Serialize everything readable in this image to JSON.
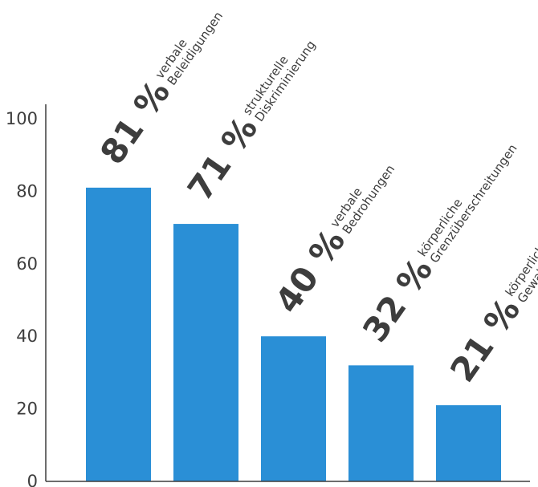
{
  "chart_data": {
    "type": "bar",
    "title": "",
    "xlabel": "",
    "ylabel": "",
    "ylim": [
      0,
      100
    ],
    "yticks": [
      0,
      20,
      40,
      60,
      80,
      100
    ],
    "grid": false,
    "legend": "none",
    "bar_color": "#2a8fd6",
    "text_color": "#3d3d3d",
    "categories": [
      [
        "verbale",
        "Beleidigungen"
      ],
      [
        "strukturelle",
        "Diskriminierung"
      ],
      [
        "verbale",
        "Bedrohungen"
      ],
      [
        "körperliche",
        "Grenzüberschreitungen"
      ],
      [
        "körperliche",
        "Gewalt"
      ]
    ],
    "values": [
      81,
      71,
      40,
      32,
      21
    ],
    "data_labels": [
      "81 %",
      "71 %",
      "40 %",
      "32 %",
      "21 %"
    ]
  }
}
